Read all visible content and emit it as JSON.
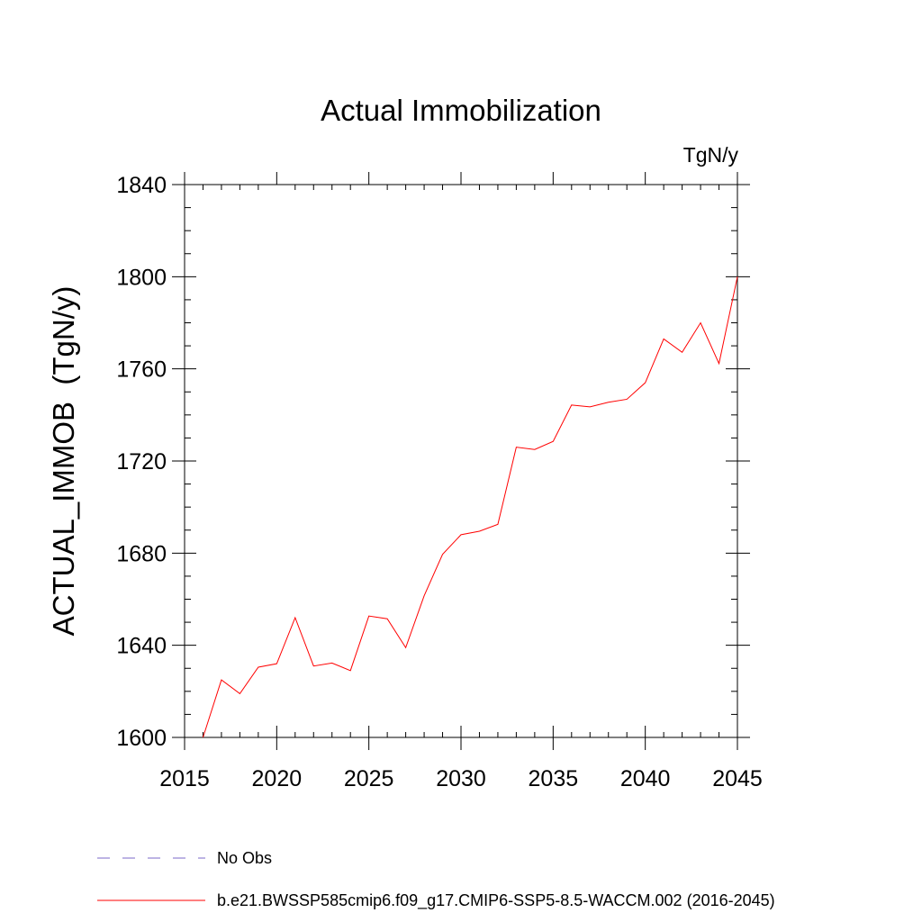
{
  "chart_data": {
    "type": "line",
    "title": "Actual Immobilization",
    "units": "TgN/y",
    "xlabel": "",
    "ylabel": "ACTUAL_IMMOB  (TgN/y)",
    "xlim": [
      2015,
      2045
    ],
    "ylim": [
      1600,
      1840
    ],
    "x_ticks": [
      "2015",
      "2020",
      "2025",
      "2030",
      "2035",
      "2040",
      "2045"
    ],
    "y_ticks": [
      "1600",
      "1640",
      "1680",
      "1720",
      "1760",
      "1800",
      "1840"
    ],
    "series": [
      {
        "name": "b.e21.BWSSP585cmip6.f09_g17.CMIP6-SSP5-8.5-WACCM.002 (2016-2045)",
        "color": "#ff0000",
        "style": "solid",
        "x": [
          2016,
          2017,
          2018,
          2019,
          2020,
          2021,
          2022,
          2023,
          2024,
          2025,
          2026,
          2027,
          2028,
          2029,
          2030,
          2031,
          2032,
          2033,
          2034,
          2035,
          2036,
          2037,
          2038,
          2039,
          2040,
          2041,
          2042,
          2043,
          2044,
          2045
        ],
        "y": [
          1600,
          1625,
          1619,
          1630.5,
          1632,
          1652,
          1631,
          1632.3,
          1629,
          1652.7,
          1651.5,
          1639,
          1661.5,
          1679.5,
          1688,
          1689.5,
          1692.5,
          1726,
          1725,
          1728.5,
          1744.3,
          1743.5,
          1745.5,
          1746.8,
          1754,
          1773,
          1767.2,
          1780,
          1762.3,
          1800
        ]
      }
    ],
    "legend": [
      {
        "label": "No Obs",
        "color": "#7b68c8",
        "style": "dashed"
      },
      {
        "label": "b.e21.BWSSP585cmip6.f09_g17.CMIP6-SSP5-8.5-WACCM.002 (2016-2045)",
        "color": "#ff0000",
        "style": "solid"
      }
    ],
    "legend_position": "bottom-left",
    "grid": false
  }
}
